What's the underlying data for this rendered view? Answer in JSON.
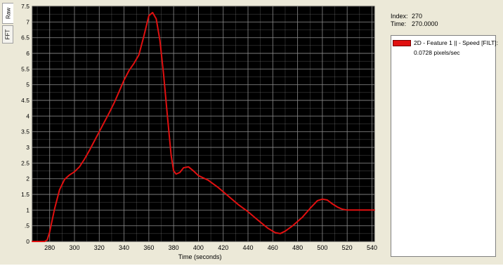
{
  "tabs": [
    {
      "label": "Raw"
    },
    {
      "label": "FFT"
    }
  ],
  "chart_data": {
    "type": "line",
    "xlabel": "Time (seconds)",
    "ylabel": "",
    "xlim": [
      266,
      542
    ],
    "ylim": [
      0,
      7.5
    ],
    "xticks": [
      280,
      300,
      320,
      340,
      360,
      380,
      400,
      420,
      440,
      460,
      480,
      500,
      520,
      540
    ],
    "yticks": [
      0,
      0.5,
      1,
      1.5,
      2,
      2.5,
      3,
      3.5,
      4,
      4.5,
      5,
      5.5,
      6,
      6.5,
      7,
      7.5
    ],
    "ytick_labels": [
      "0",
      ".5",
      "1",
      "1.5",
      "2",
      "2.5",
      "3",
      "3.5",
      "4",
      "4.5",
      "5",
      "5.5",
      "6",
      "6.5",
      "7",
      "7.5"
    ],
    "grid": true,
    "background": "#000000",
    "grid_color": "#8a8a8a",
    "series": [
      {
        "color": "#e01010",
        "x": [
          266,
          276,
          278,
          280,
          284,
          288,
          292,
          296,
          300,
          304,
          308,
          312,
          316,
          320,
          324,
          328,
          332,
          336,
          340,
          344,
          348,
          352,
          356,
          360,
          363,
          366,
          369,
          372,
          375,
          378,
          380,
          382,
          385,
          388,
          392,
          396,
          400,
          408,
          416,
          424,
          432,
          440,
          448,
          456,
          462,
          466,
          470,
          476,
          484,
          490,
          496,
          500,
          504,
          508,
          512,
          516,
          520,
          530,
          542
        ],
        "y": [
          0,
          0,
          0.05,
          0.3,
          1.05,
          1.65,
          1.98,
          2.12,
          2.22,
          2.38,
          2.62,
          2.9,
          3.2,
          3.5,
          3.8,
          4.1,
          4.42,
          4.78,
          5.15,
          5.45,
          5.68,
          5.95,
          6.55,
          7.2,
          7.3,
          7.1,
          6.4,
          5.3,
          4.0,
          2.75,
          2.25,
          2.15,
          2.2,
          2.35,
          2.38,
          2.25,
          2.1,
          1.95,
          1.72,
          1.45,
          1.18,
          0.95,
          0.68,
          0.42,
          0.28,
          0.25,
          0.33,
          0.5,
          0.78,
          1.05,
          1.3,
          1.35,
          1.32,
          1.2,
          1.1,
          1.03,
          1.0,
          1.0,
          1.0
        ]
      }
    ]
  },
  "readout": {
    "index_label": "Index:",
    "index_value": "270",
    "time_label": "Time:",
    "time_value": "270.0000"
  },
  "legend": {
    "color": "#e01010",
    "name": "2D - Feature 1 || - Speed [FILT]:",
    "value": "0.0728 pixels/sec"
  }
}
